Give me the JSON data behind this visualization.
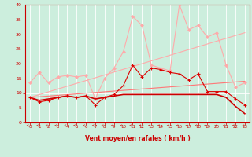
{
  "xlabel": "Vent moyen/en rafales ( km/h )",
  "background_color": "#cceedd",
  "grid_color": "#ffffff",
  "xlim": [
    -0.5,
    23.5
  ],
  "ylim": [
    0,
    40
  ],
  "yticks": [
    0,
    5,
    10,
    15,
    20,
    25,
    30,
    35,
    40
  ],
  "xticks": [
    0,
    1,
    2,
    3,
    4,
    5,
    6,
    7,
    8,
    9,
    10,
    11,
    12,
    13,
    14,
    15,
    16,
    17,
    18,
    19,
    20,
    21,
    22,
    23
  ],
  "line_trend1_x": [
    0,
    23
  ],
  "line_trend1_y": [
    8.5,
    30.5
  ],
  "line_trend1_color": "#ffaaaa",
  "line_trend1_lw": 0.8,
  "line_trend2_x": [
    0,
    23
  ],
  "line_trend2_y": [
    8.5,
    14.0
  ],
  "line_trend2_color": "#ff7777",
  "line_trend2_lw": 0.8,
  "line_pink_x": [
    0,
    1,
    2,
    3,
    4,
    5,
    6,
    7,
    8,
    9,
    10,
    11,
    12,
    13,
    14,
    15,
    16,
    17,
    18,
    19,
    20,
    21,
    22,
    23
  ],
  "line_pink_y": [
    13.5,
    17.0,
    13.5,
    15.5,
    16.0,
    15.5,
    16.0,
    8.0,
    15.0,
    18.5,
    24.0,
    36.0,
    33.0,
    19.5,
    18.5,
    17.5,
    40.0,
    31.5,
    33.0,
    29.0,
    30.5,
    19.5,
    12.0,
    13.5
  ],
  "line_pink_color": "#ffaaaa",
  "line_pink_lw": 0.8,
  "line_pink_marker": "D",
  "line_pink_ms": 2.0,
  "line_red_x": [
    0,
    1,
    2,
    3,
    4,
    5,
    6,
    7,
    8,
    9,
    10,
    11,
    12,
    13,
    14,
    15,
    16,
    17,
    18,
    19,
    20,
    21,
    22,
    23
  ],
  "line_red_y": [
    8.5,
    7.0,
    7.5,
    8.5,
    9.0,
    8.5,
    9.0,
    6.0,
    8.5,
    9.5,
    12.5,
    19.5,
    15.5,
    18.5,
    18.0,
    17.0,
    16.5,
    14.5,
    16.5,
    10.5,
    10.5,
    10.5,
    8.0,
    6.0
  ],
  "line_red_color": "#dd0000",
  "line_red_lw": 0.8,
  "line_red_marker": "+",
  "line_red_ms": 3.0,
  "line_dark_x": [
    0,
    1,
    2,
    3,
    4,
    5,
    6,
    7,
    8,
    9,
    10,
    11,
    12,
    13,
    14,
    15,
    16,
    17,
    18,
    19,
    20,
    21,
    22,
    23
  ],
  "line_dark_y": [
    8.5,
    7.5,
    8.0,
    8.5,
    9.0,
    8.5,
    9.0,
    8.0,
    8.5,
    9.0,
    9.5,
    9.5,
    9.5,
    9.5,
    9.5,
    9.5,
    9.5,
    9.5,
    9.5,
    9.5,
    9.5,
    8.5,
    5.5,
    3.0
  ],
  "line_dark_color": "#cc0000",
  "line_dark_lw": 1.2,
  "tick_color": "#cc0000",
  "arrow_color": "#cc2222",
  "xlabel_color": "#cc0000",
  "axis_line_color": "#cc0000"
}
